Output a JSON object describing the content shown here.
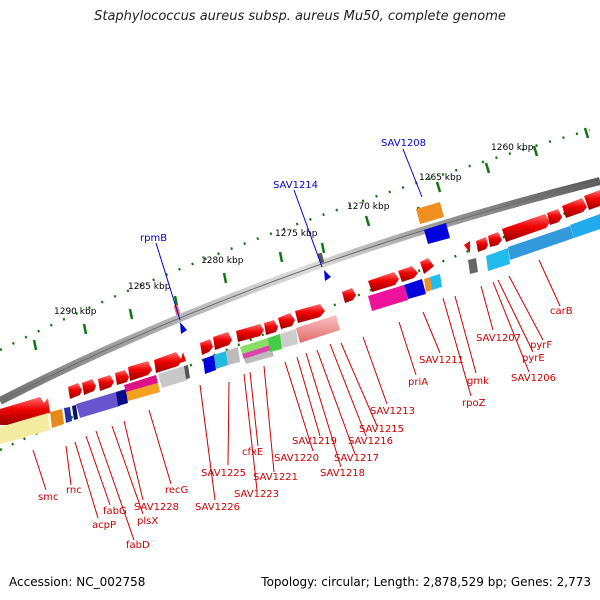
{
  "title": "Staphylococcus aureus subsp. aureus Mu50, complete genome",
  "footer": {
    "accession_label": "Accession:",
    "accession": "NC_002758",
    "topology_label": "Topology:",
    "topology": "circular",
    "length_label": "Length:",
    "length": "2,878,529 bp",
    "genes_label": "Genes:",
    "genes": "2,773"
  },
  "colors": {
    "backbone": "#7d7d7d",
    "gene_red": "#ee0000",
    "label_red": "#cc0000",
    "label_blue": "#0000cc",
    "tick_green": "#117711"
  },
  "kbp_ticks": [
    {
      "label": "1260 kbp"
    },
    {
      "label": "1265 kbp"
    },
    {
      "label": "1270 kbp"
    },
    {
      "label": "1275 kbp"
    },
    {
      "label": "1280 kbp"
    },
    {
      "label": "1285 kbp"
    },
    {
      "label": "1290 kbp"
    }
  ],
  "blue_labels": [
    "SAV1208",
    "SAV1214",
    "rpmB"
  ],
  "red_labels": [
    "carB",
    "pyrF",
    "pyrE",
    "SAV1206",
    "SAV1207",
    "gmk",
    "rpoZ",
    "SAV1211",
    "priA",
    "SAV1213",
    "SAV1215",
    "SAV1216",
    "SAV1217",
    "SAV1218",
    "SAV1219",
    "SAV1220",
    "SAV1221",
    "cfxE",
    "SAV1223",
    "SAV1225",
    "SAV1226",
    "recG",
    "SAV1228",
    "plsX",
    "fabD",
    "fabG",
    "acpP",
    "rnc",
    "smc"
  ]
}
